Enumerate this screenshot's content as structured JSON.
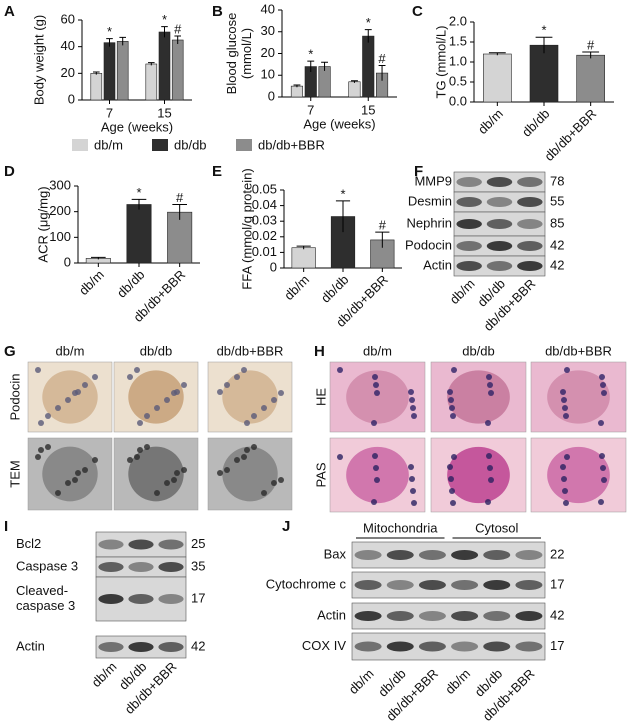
{
  "chart_data": [
    {
      "panel": "A",
      "type": "bar",
      "ylabel": [
        "Body weight (g)"
      ],
      "xlabel": "Age (weeks)",
      "categories": [
        "7",
        "15"
      ],
      "ylim": [
        0,
        60
      ],
      "yticks": [
        0,
        20,
        40,
        60
      ],
      "series": [
        {
          "name": "db/m",
          "color": "#d4d4d4",
          "values": [
            20,
            27
          ],
          "errors": [
            1,
            1
          ],
          "sig": [
            null,
            null
          ]
        },
        {
          "name": "db/db",
          "color": "#2e2e2e",
          "values": [
            43,
            51
          ],
          "errors": [
            3,
            4
          ],
          "sig": [
            "*",
            "*"
          ]
        },
        {
          "name": "db/db+BBR",
          "color": "#8c8c8c",
          "values": [
            44,
            45
          ],
          "errors": [
            3,
            3
          ],
          "sig": [
            null,
            "#"
          ]
        }
      ]
    },
    {
      "panel": "B",
      "type": "bar",
      "ylabel": [
        "Blood glucose",
        "(mmol/L)"
      ],
      "xlabel": "Age (weeks)",
      "categories": [
        "7",
        "15"
      ],
      "ylim": [
        0,
        40
      ],
      "yticks": [
        0,
        10,
        20,
        30,
        40
      ],
      "series": [
        {
          "color": "#d4d4d4",
          "values": [
            5,
            7
          ],
          "errors": [
            0.5,
            0.5
          ],
          "sig": [
            null,
            null
          ]
        },
        {
          "color": "#2e2e2e",
          "values": [
            14,
            28
          ],
          "errors": [
            2.5,
            3
          ],
          "sig": [
            "*",
            "*"
          ]
        },
        {
          "color": "#8c8c8c",
          "values": [
            14,
            11
          ],
          "errors": [
            2,
            3.5
          ],
          "sig": [
            null,
            "#"
          ]
        }
      ]
    },
    {
      "panel": "C",
      "type": "bar",
      "ylabel": [
        "TG (mmol/L)"
      ],
      "categories": [
        "db/m",
        "db/db",
        "db/db+BBR"
      ],
      "ylim": [
        0,
        2
      ],
      "yticks": [
        {
          "value": 0,
          "label": "0.0"
        },
        0.5,
        {
          "value": 1,
          "label": "1.0"
        },
        1.5,
        {
          "value": 2,
          "label": "2.0"
        }
      ],
      "values": [
        1.2,
        1.42,
        1.17
      ],
      "errors": [
        0.03,
        0.2,
        0.08
      ],
      "colors": [
        "#d4d4d4",
        "#2e2e2e",
        "#8c8c8c"
      ],
      "sig": [
        null,
        "*",
        "#"
      ]
    },
    {
      "panel": "D",
      "type": "bar",
      "ylabel": [
        "ACR (μg/mg)"
      ],
      "categories": [
        "db/m",
        "db/db",
        "db/db+BBR"
      ],
      "ylim": [
        0,
        300
      ],
      "yticks": [
        0,
        100,
        200,
        300
      ],
      "values": [
        18,
        228,
        198
      ],
      "errors": [
        4,
        20,
        30
      ],
      "colors": [
        "#d4d4d4",
        "#2e2e2e",
        "#8c8c8c"
      ],
      "sig": [
        null,
        "*",
        "#"
      ]
    },
    {
      "panel": "E",
      "type": "bar",
      "ylabel": [
        "FFA (mmol/g protein)"
      ],
      "categories": [
        "db/m",
        "db/db",
        "db/db+BBR"
      ],
      "ylim": [
        0,
        0.05
      ],
      "yticks": [
        0,
        0.01,
        0.02,
        0.03,
        0.04,
        0.05
      ],
      "values": [
        0.013,
        0.033,
        0.018
      ],
      "errors": [
        0.001,
        0.01,
        0.005
      ],
      "colors": [
        "#d4d4d4",
        "#2e2e2e",
        "#8c8c8c"
      ],
      "sig": [
        null,
        "*",
        "#"
      ]
    }
  ],
  "blot_f": {
    "panel": "F",
    "rows": [
      {
        "name": [
          "MMP9"
        ],
        "kda": 78
      },
      {
        "name": [
          "Desmin"
        ],
        "kda": 55
      },
      {
        "name": [
          "Nephrin"
        ],
        "kda": 85
      },
      {
        "name": [
          "Podocin"
        ],
        "kda": 42
      },
      {
        "name": [
          "Actin"
        ],
        "kda": 42
      }
    ],
    "lanes": [
      "db/m",
      "db/db",
      "db/db+BBR"
    ]
  },
  "micro_g": {
    "panel": "G",
    "columns": [
      "db/m",
      "db/db",
      "db/db+BBR"
    ],
    "rows": [
      "Podocin",
      "TEM"
    ]
  },
  "micro_h": {
    "panel": "H",
    "columns": [
      "db/m",
      "db/db",
      "db/db+BBR"
    ],
    "rows": [
      "HE",
      "PAS"
    ]
  },
  "blot_i": {
    "panel": "I",
    "rows": [
      {
        "name": [
          "Bcl2"
        ],
        "kda": 25
      },
      {
        "name": [
          "Caspase 3"
        ],
        "kda": 35
      },
      {
        "name": [
          "Cleaved-",
          "caspase 3"
        ],
        "kda": 17
      },
      {
        "name": [
          "Actin"
        ],
        "kda": 42
      }
    ],
    "lanes": [
      "db/m",
      "db/db",
      "db/db+BBR"
    ]
  },
  "blot_j": {
    "panel": "J",
    "groups": [
      "Mitochondria",
      "Cytosol"
    ],
    "rows": [
      {
        "name": [
          "Bax"
        ],
        "kda": 22
      },
      {
        "name": [
          "Cytochrome c"
        ],
        "kda": 17
      },
      {
        "name": [
          "Actin"
        ],
        "kda": 42
      },
      {
        "name": [
          "COX IV"
        ],
        "kda": 17
      }
    ],
    "lanes": [
      "db/m",
      "db/db",
      "db/db+BBR",
      "db/m",
      "db/db",
      "db/db+BBR"
    ]
  }
}
